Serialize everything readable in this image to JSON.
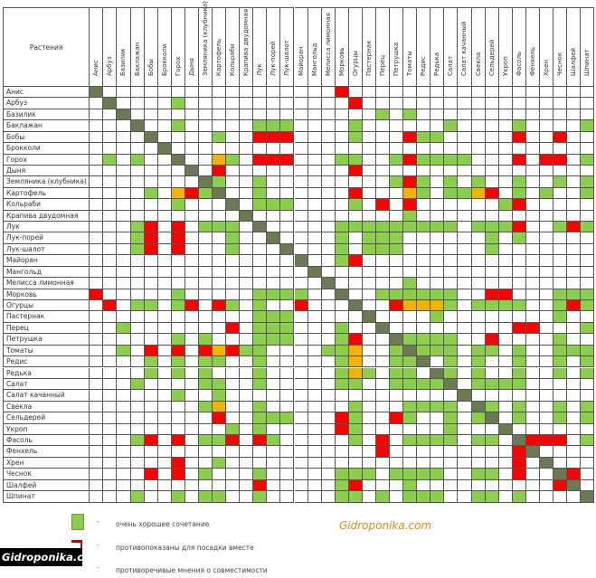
{
  "header_label": "Растения",
  "colors": {
    "good": "#8ccf4d",
    "bad": "#ff0000",
    "mixed": "#f2b400",
    "diagonal": "#6b7a52",
    "empty": "#ffffff"
  },
  "plants": [
    {
      "name": "Анис",
      "green": [],
      "red": [
        18
      ],
      "mixed": []
    },
    {
      "name": "Арбуз",
      "green": [
        6
      ],
      "red": [
        19
      ],
      "mixed": []
    },
    {
      "name": "Базилик",
      "green": [
        21,
        23
      ],
      "red": [],
      "mixed": []
    },
    {
      "name": "Баклажан",
      "green": [
        6,
        12,
        13,
        14,
        19,
        26,
        31,
        36
      ],
      "red": [],
      "mixed": []
    },
    {
      "name": "Бобы",
      "green": [
        9,
        19,
        24,
        25
      ],
      "red": [
        12,
        13,
        14,
        23,
        31,
        34
      ],
      "mixed": []
    },
    {
      "name": "Брокколи",
      "green": [],
      "red": [],
      "mixed": []
    },
    {
      "name": "Горох",
      "green": [
        1,
        3,
        10,
        18,
        19,
        22,
        24,
        25,
        26,
        27,
        36
      ],
      "red": [
        12,
        13,
        14,
        23,
        31,
        33,
        34
      ],
      "mixed": [
        9
      ]
    },
    {
      "name": "Дыня",
      "green": [],
      "red": [
        9,
        19
      ],
      "mixed": []
    },
    {
      "name": "Земляника (клубника)",
      "green": [
        9,
        12,
        22,
        24,
        26,
        28,
        31,
        34,
        36
      ],
      "red": [
        23
      ],
      "mixed": []
    },
    {
      "name": "Картофель",
      "green": [
        4,
        8,
        12,
        24,
        26,
        27,
        31,
        33,
        36
      ],
      "red": [
        7,
        19,
        29
      ],
      "mixed": [
        6,
        23,
        28
      ]
    },
    {
      "name": "Кольраби",
      "green": [
        6,
        12,
        13,
        14,
        19,
        30
      ],
      "red": [
        21,
        23,
        31
      ],
      "mixed": []
    },
    {
      "name": "Крапива двудомная",
      "green": [
        23
      ],
      "red": [],
      "mixed": []
    },
    {
      "name": "Лук",
      "green": [
        3,
        8,
        9,
        10,
        18,
        19,
        20,
        21,
        22,
        23,
        24,
        25,
        26,
        28,
        29,
        30,
        34,
        36
      ],
      "red": [
        4,
        6,
        31,
        35
      ],
      "mixed": []
    },
    {
      "name": "Лук-порей",
      "green": [
        3,
        10,
        18,
        20,
        21,
        22,
        29,
        31
      ],
      "red": [
        4,
        6
      ],
      "mixed": []
    },
    {
      "name": "Лук-шалот",
      "green": [
        3,
        10,
        18,
        20,
        21,
        22,
        29
      ],
      "red": [
        4,
        6
      ],
      "mixed": []
    },
    {
      "name": "Майоран",
      "green": [
        18
      ],
      "red": [
        19
      ],
      "mixed": []
    },
    {
      "name": "Мангольд",
      "green": [],
      "red": [],
      "mixed": []
    },
    {
      "name": "Мелисса лимонная",
      "green": [
        23
      ],
      "red": [],
      "mixed": []
    },
    {
      "name": "Морковь",
      "green": [
        6,
        12,
        13,
        14,
        15,
        21,
        22,
        23,
        24,
        25,
        26,
        34,
        35,
        36
      ],
      "red": [
        0,
        29,
        30
      ],
      "mixed": []
    },
    {
      "name": "Огурцы",
      "green": [
        3,
        4,
        6,
        10,
        12,
        26,
        28,
        29,
        30,
        31,
        34,
        36
      ],
      "red": [
        1,
        7,
        9,
        15,
        22,
        35
      ],
      "mixed": [
        23,
        24,
        25
      ]
    },
    {
      "name": "Пастернак",
      "green": [
        12,
        13,
        14,
        25,
        34
      ],
      "red": [],
      "mixed": []
    },
    {
      "name": "Перец",
      "green": [
        2,
        12,
        13,
        14,
        18,
        36
      ],
      "red": [
        10,
        31,
        32
      ],
      "mixed": []
    },
    {
      "name": "Петрушка",
      "green": [
        6,
        8,
        12,
        13,
        14,
        18,
        23,
        24,
        25,
        26,
        34
      ],
      "red": [
        19,
        29
      ],
      "mixed": []
    },
    {
      "name": "Томаты",
      "green": [
        2,
        11,
        12,
        17,
        18,
        22,
        24,
        25,
        26,
        28,
        29,
        31,
        34,
        35,
        36
      ],
      "red": [
        4,
        6,
        8,
        10
      ],
      "mixed": [
        9,
        19
      ]
    },
    {
      "name": "Редис",
      "green": [
        4,
        6,
        8,
        9,
        12,
        18,
        22,
        23,
        26,
        28,
        31,
        34,
        36
      ],
      "red": [],
      "mixed": [
        19
      ]
    },
    {
      "name": "Редька",
      "green": [
        4,
        6,
        8,
        12,
        18,
        20,
        22,
        23,
        26,
        28,
        31,
        34,
        36
      ],
      "red": [],
      "mixed": [
        19
      ]
    },
    {
      "name": "Салат",
      "green": [
        3,
        8,
        9,
        12,
        18,
        19,
        22,
        23,
        24,
        25,
        28,
        29,
        30,
        31
      ],
      "red": [],
      "mixed": []
    },
    {
      "name": "Салат качанный",
      "green": [
        6,
        9
      ],
      "red": [],
      "mixed": []
    },
    {
      "name": "Свекла",
      "green": [
        8,
        12,
        19,
        23,
        24,
        25,
        26,
        29,
        31,
        34,
        36
      ],
      "red": [],
      "mixed": [
        9
      ]
    },
    {
      "name": "Сельдерей",
      "green": [
        12,
        13,
        14,
        19,
        23,
        26,
        28,
        31,
        34,
        36
      ],
      "red": [
        9,
        18,
        22
      ],
      "mixed": []
    },
    {
      "name": "Укроп",
      "green": [
        10,
        12,
        19,
        26
      ],
      "red": [
        18
      ],
      "mixed": []
    },
    {
      "name": "Фасоль",
      "green": [
        3,
        8,
        9,
        13,
        19,
        23,
        24,
        25,
        26,
        28,
        29,
        36
      ],
      "red": [
        4,
        6,
        10,
        12,
        21,
        32,
        33,
        34
      ],
      "mixed": []
    },
    {
      "name": "Фенхель",
      "green": [],
      "red": [
        21,
        31
      ],
      "mixed": []
    },
    {
      "name": "Хрен",
      "green": [
        9
      ],
      "red": [
        6,
        31
      ],
      "mixed": []
    },
    {
      "name": "Чеснок",
      "green": [
        8,
        12,
        18,
        19,
        20,
        22,
        23,
        24,
        25,
        28,
        29
      ],
      "red": [
        4,
        6,
        31,
        35
      ],
      "mixed": []
    },
    {
      "name": "Шалфей",
      "green": [
        18,
        23
      ],
      "red": [
        12,
        19,
        34
      ],
      "mixed": []
    },
    {
      "name": "Шпинат",
      "green": [
        3,
        6,
        8,
        9,
        12,
        18,
        19,
        21,
        23,
        24,
        25,
        28,
        29,
        31
      ],
      "red": [],
      "mixed": []
    }
  ],
  "legend": {
    "good": "очень хорошее сочетание",
    "bad": "противопоказаны для посадки вместе",
    "mixed": "противоречивые мнения о совместимости",
    "bullet": "-"
  },
  "watermark": "Gidroponika.com",
  "logo": "Gidroponika.com"
}
